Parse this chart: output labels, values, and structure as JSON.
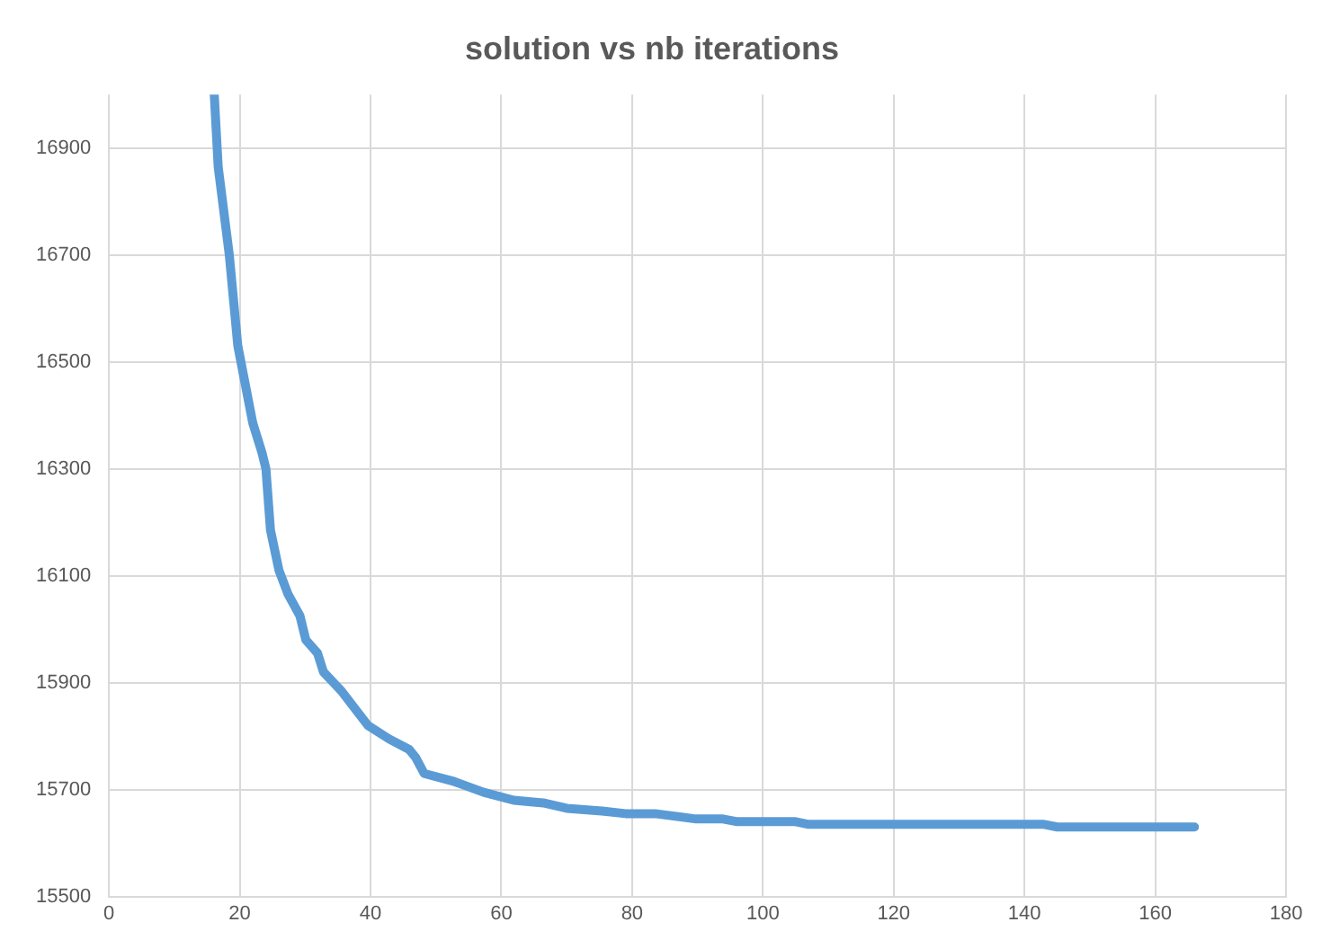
{
  "chart_data": {
    "type": "line",
    "title": "solution vs nb iterations",
    "x": [
      16.1,
      16.7,
      18.4,
      19.7,
      22,
      23.4,
      24,
      24.7,
      26,
      27.4,
      29.2,
      30.1,
      31.9,
      32.8,
      35.5,
      39.6,
      42.8,
      45.9,
      46.9,
      48.2,
      52.8,
      57.3,
      61.9,
      66.4,
      70,
      75.4,
      79,
      83.5,
      89.8,
      93.9,
      96.1,
      105,
      107,
      134,
      136,
      143,
      145,
      166
    ],
    "series": [
      {
        "color": "#5b9bd5",
        "values": [
          17000,
          16865,
          16700,
          16530,
          16385,
          16330,
          16300,
          16185,
          16110,
          16065,
          16025,
          15980,
          15955,
          15920,
          15885,
          15820,
          15795,
          15775,
          15760,
          15730,
          15715,
          15695,
          15680,
          15675,
          15665,
          15660,
          15655,
          15655,
          15645,
          15645,
          15640,
          15640,
          15635,
          15635,
          15635,
          15635,
          15630,
          15630
        ]
      }
    ],
    "xlim": [
      0,
      180
    ],
    "xticks": [
      0,
      20,
      40,
      60,
      80,
      100,
      120,
      140,
      160,
      180
    ],
    "ylim": [
      15500,
      17000
    ],
    "yticks": [
      15500,
      15700,
      15900,
      16100,
      16300,
      16500,
      16700,
      16900
    ],
    "grid": true,
    "legend": false,
    "marker": "none",
    "line_style": "solid"
  }
}
